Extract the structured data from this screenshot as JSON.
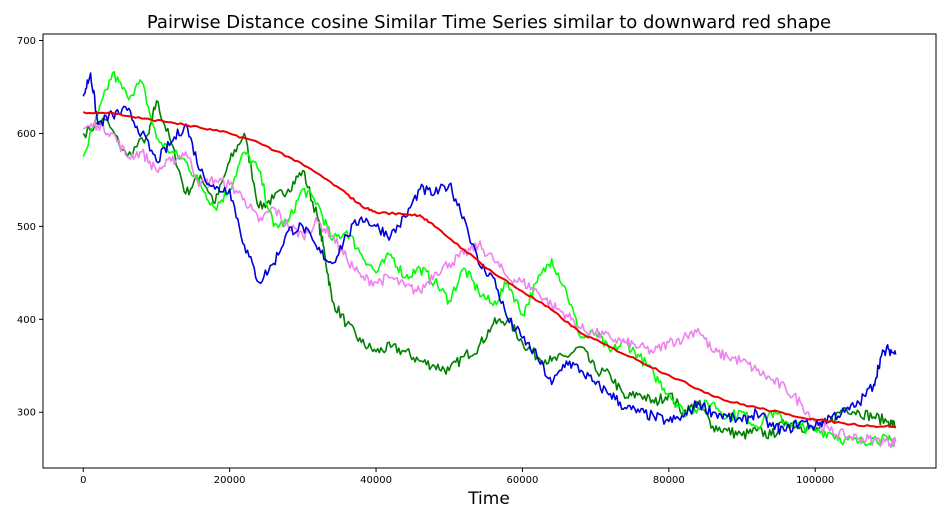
{
  "chart_data": {
    "type": "line",
    "title": "Pairwise Distance cosine Similar Time Series similar to downward red shape",
    "xlabel": "Time",
    "ylabel": "",
    "xlim": [
      -5500,
      116500
    ],
    "ylim": [
      240,
      707
    ],
    "xticks": [
      0,
      20000,
      40000,
      60000,
      80000,
      100000
    ],
    "yticks": [
      300,
      400,
      500,
      600,
      700
    ],
    "grid": false,
    "legend": "none",
    "series": [
      {
        "color": "#008000",
        "x": [
          0,
          3000,
          6000,
          9000,
          10000,
          12000,
          14000,
          16000,
          18000,
          20000,
          22000,
          24000,
          26000,
          28000,
          30000,
          32000,
          33000,
          34000,
          36000,
          38000,
          40000,
          42000,
          44000,
          46000,
          48000,
          50000,
          52000,
          54000,
          56000,
          58000,
          60000,
          62000,
          64000,
          66000,
          68000,
          70000,
          72000,
          74000,
          76000,
          78000,
          80000,
          82000,
          84000,
          86000,
          88000,
          90000,
          92000,
          94000,
          96000,
          98000,
          100000,
          102000,
          104000,
          106000,
          108000,
          110000,
          111000
        ],
        "y": [
          600,
          615,
          575,
          600,
          635,
          590,
          535,
          555,
          525,
          570,
          600,
          520,
          530,
          540,
          560,
          510,
          470,
          420,
          395,
          375,
          365,
          370,
          365,
          355,
          350,
          345,
          360,
          370,
          395,
          400,
          375,
          360,
          355,
          360,
          370,
          345,
          340,
          315,
          320,
          310,
          320,
          300,
          310,
          285,
          280,
          275,
          280,
          275,
          290,
          285,
          280,
          290,
          305,
          300,
          295,
          290,
          285
        ]
      },
      {
        "color": "#00ff00",
        "x": [
          0,
          2000,
          4000,
          6000,
          8000,
          10000,
          12000,
          14000,
          16000,
          18000,
          20000,
          22000,
          24000,
          26000,
          28000,
          30000,
          32000,
          34000,
          36000,
          38000,
          40000,
          42000,
          44000,
          46000,
          48000,
          50000,
          52000,
          54000,
          56000,
          58000,
          60000,
          62000,
          64000,
          66000,
          68000,
          70000,
          72000,
          74000,
          76000,
          78000,
          80000,
          82000,
          84000,
          86000,
          88000,
          90000,
          92000,
          94000,
          96000,
          98000,
          100000,
          102000,
          104000,
          106000,
          108000,
          110000,
          111000
        ],
        "y": [
          575,
          620,
          665,
          640,
          655,
          595,
          580,
          570,
          545,
          520,
          540,
          580,
          560,
          500,
          505,
          540,
          525,
          485,
          495,
          470,
          450,
          470,
          445,
          455,
          440,
          420,
          455,
          430,
          415,
          440,
          405,
          440,
          465,
          430,
          380,
          385,
          365,
          375,
          360,
          340,
          320,
          300,
          305,
          310,
          295,
          300,
          285,
          300,
          290,
          285,
          280,
          278,
          270,
          268,
          272,
          270,
          268
        ]
      },
      {
        "color": "#ee82ee",
        "x": [
          0,
          2000,
          4000,
          6000,
          8000,
          10000,
          12000,
          14000,
          16000,
          18000,
          20000,
          22000,
          24000,
          26000,
          28000,
          30000,
          32000,
          34000,
          36000,
          38000,
          40000,
          42000,
          44000,
          46000,
          48000,
          50000,
          52000,
          54000,
          56000,
          58000,
          60000,
          62000,
          64000,
          66000,
          68000,
          70000,
          72000,
          74000,
          76000,
          78000,
          80000,
          82000,
          84000,
          86000,
          88000,
          90000,
          92000,
          94000,
          96000,
          98000,
          100000,
          102000,
          104000,
          106000,
          108000,
          110000,
          111000
        ],
        "y": [
          605,
          610,
          600,
          575,
          580,
          560,
          570,
          580,
          545,
          550,
          545,
          530,
          505,
          520,
          500,
          490,
          505,
          490,
          465,
          445,
          440,
          445,
          435,
          430,
          450,
          460,
          470,
          480,
          465,
          445,
          440,
          430,
          415,
          405,
          390,
          385,
          380,
          375,
          370,
          365,
          375,
          380,
          390,
          365,
          360,
          355,
          345,
          335,
          325,
          310,
          290,
          280,
          275,
          272,
          270,
          268,
          268
        ]
      },
      {
        "color": "#0000dd",
        "x": [
          0,
          1000,
          2000,
          4000,
          6000,
          8000,
          10000,
          12000,
          14000,
          16000,
          18000,
          20000,
          22000,
          24000,
          26000,
          28000,
          30000,
          32000,
          34000,
          36000,
          38000,
          40000,
          42000,
          44000,
          46000,
          48000,
          50000,
          52000,
          54000,
          56000,
          58000,
          60000,
          62000,
          64000,
          66000,
          68000,
          70000,
          72000,
          74000,
          76000,
          78000,
          80000,
          82000,
          84000,
          86000,
          88000,
          90000,
          92000,
          94000,
          96000,
          98000,
          100000,
          102000,
          104000,
          106000,
          108000,
          109000,
          110000,
          111000
        ],
        "y": [
          640,
          665,
          610,
          620,
          625,
          600,
          570,
          590,
          610,
          560,
          540,
          540,
          480,
          440,
          460,
          495,
          500,
          475,
          460,
          490,
          510,
          500,
          490,
          510,
          540,
          535,
          545,
          510,
          460,
          445,
          400,
          380,
          360,
          330,
          355,
          345,
          330,
          320,
          305,
          300,
          295,
          290,
          295,
          310,
          300,
          295,
          290,
          300,
          285,
          280,
          290,
          285,
          295,
          300,
          310,
          330,
          360,
          368,
          362
        ]
      },
      {
        "color": "#ee0000",
        "x": [
          0,
          4000,
          8000,
          12000,
          16000,
          20000,
          24000,
          28000,
          32000,
          36000,
          38000,
          40000,
          44000,
          46000,
          48000,
          52000,
          56000,
          60000,
          64000,
          68000,
          72000,
          76000,
          80000,
          84000,
          88000,
          92000,
          96000,
          100000,
          104000,
          108000,
          111000
        ],
        "y": [
          623,
          622,
          616,
          612,
          606,
          600,
          590,
          575,
          557,
          535,
          522,
          515,
          513,
          512,
          500,
          475,
          450,
          430,
          410,
          385,
          370,
          355,
          340,
          325,
          312,
          305,
          298,
          292,
          288,
          285,
          285
        ]
      }
    ]
  }
}
